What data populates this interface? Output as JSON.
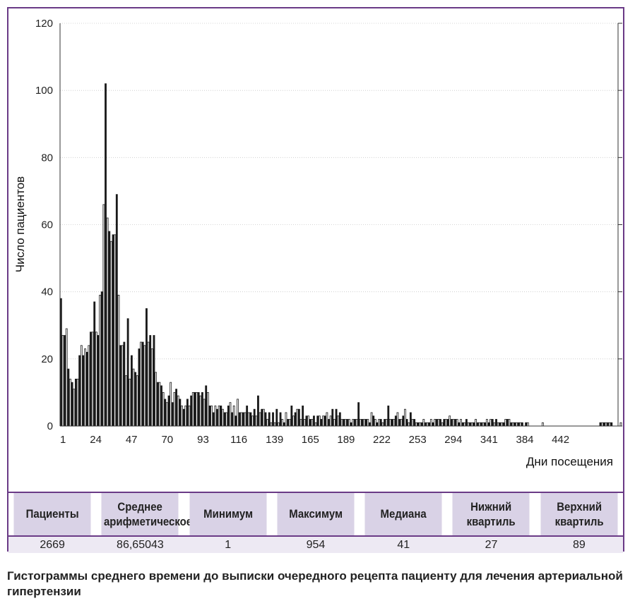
{
  "chart_data": {
    "type": "bar",
    "xlabel": "Дни посещения",
    "ylabel": "Число пациентов",
    "ylim": [
      0,
      120
    ],
    "yticks": [
      0,
      20,
      40,
      60,
      80,
      100,
      120
    ],
    "x_tick_labels": [
      "1",
      "24",
      "47",
      "70",
      "93",
      "116",
      "139",
      "165",
      "189",
      "222",
      "253",
      "294",
      "341",
      "384",
      "442"
    ],
    "bar_count": 300,
    "values": [
      38,
      27,
      27,
      29,
      17,
      14,
      13,
      11,
      14,
      14,
      21,
      24,
      21,
      23,
      22,
      24,
      28,
      28,
      37,
      28,
      27,
      39,
      40,
      66,
      102,
      62,
      58,
      55,
      57,
      57,
      69,
      39,
      24,
      24,
      25,
      15,
      32,
      14,
      21,
      17,
      16,
      15,
      23,
      25,
      25,
      24,
      35,
      25,
      27,
      23,
      27,
      16,
      13,
      13,
      12,
      10,
      8,
      7,
      9,
      13,
      7,
      10,
      11,
      9,
      8,
      6,
      5,
      6,
      8,
      6,
      9,
      10,
      10,
      10,
      10,
      9,
      10,
      8,
      12,
      10,
      6,
      6,
      4,
      6,
      5,
      6,
      6,
      5,
      4,
      4,
      6,
      7,
      4,
      6,
      3,
      8,
      4,
      4,
      4,
      4,
      6,
      4,
      4,
      3,
      5,
      3,
      9,
      4,
      5,
      5,
      4,
      2,
      4,
      1,
      4,
      1,
      5,
      1,
      4,
      2,
      1,
      4,
      2,
      2,
      6,
      3,
      4,
      5,
      5,
      2,
      6,
      2,
      3,
      3,
      2,
      2,
      3,
      1,
      3,
      3,
      2,
      3,
      3,
      4,
      2,
      3,
      5,
      2,
      5,
      3,
      4,
      2,
      2,
      2,
      2,
      2,
      1,
      2,
      2,
      2,
      7,
      2,
      2,
      2,
      2,
      2,
      1,
      4,
      3,
      2,
      1,
      2,
      2,
      1,
      2,
      2,
      6,
      2,
      2,
      2,
      3,
      4,
      2,
      2,
      3,
      5,
      2,
      1,
      4,
      2,
      2,
      1,
      1,
      1,
      1,
      2,
      1,
      1,
      1,
      2,
      1,
      2,
      2,
      2,
      2,
      1,
      2,
      2,
      2,
      3,
      2,
      2,
      2,
      2,
      1,
      2,
      1,
      1,
      2,
      1,
      1,
      1,
      1,
      2,
      1,
      1,
      1,
      1,
      1,
      2,
      1,
      2,
      2,
      1,
      2,
      1,
      1,
      1,
      1,
      2,
      2,
      2,
      1,
      1,
      1,
      1,
      1,
      1,
      1,
      0,
      1,
      1,
      0,
      0,
      0,
      0,
      0,
      0,
      0,
      1,
      0,
      0,
      0,
      0,
      0,
      0,
      0,
      0,
      0,
      0,
      0,
      0,
      0,
      0,
      0,
      0,
      0,
      0,
      0,
      0,
      0,
      0,
      0,
      0,
      0,
      0,
      0,
      0,
      0,
      0,
      1,
      1,
      1,
      1,
      1,
      1,
      1,
      0,
      0,
      0,
      0,
      1
    ]
  },
  "stats_table": {
    "headers": [
      "Пациенты",
      "Среднее арифметическое",
      "Минимум",
      "Максимум",
      "Медиана",
      "Нижний квартиль",
      "Верхний квартиль"
    ],
    "values": [
      "2669",
      "86,65043",
      "1",
      "954",
      "41",
      "27",
      "89"
    ]
  },
  "caption": "Гистограммы среднего времени до выписки очередного рецепта пациенту для лечения артериальной гипертензии"
}
